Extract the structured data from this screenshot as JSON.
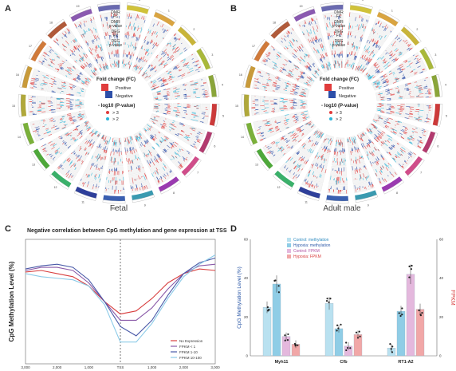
{
  "panels": {
    "A": {
      "letter": "A",
      "caption": "Fetal"
    },
    "B": {
      "letter": "B",
      "caption": "Adult male"
    },
    "C": {
      "letter": "C"
    },
    "D": {
      "letter": "D"
    }
  },
  "circos": {
    "track_labels": [
      [
        "DMR",
        "FC"
      ],
      [
        "DMR",
        "p-value"
      ],
      [
        "DEG",
        "FC"
      ],
      [
        "DEG",
        "p-value"
      ]
    ],
    "legend": {
      "fc_title": "Fold change (FC)",
      "positive": "Positive",
      "negative": "Negative",
      "p_title": "- log10 (P-value)",
      "p_gt3": "> 3",
      "p_gt2": "> 2"
    },
    "chromosomes": [
      "1",
      "2",
      "3",
      "4",
      "5",
      "6",
      "7",
      "8",
      "9",
      "10",
      "11",
      "12",
      "13",
      "14",
      "15",
      "16",
      "17",
      "18",
      "19",
      "20",
      "X"
    ],
    "colors": {
      "positive": "#e03c3c",
      "negative": "#2e4fa8",
      "p3": "#e03c3c",
      "p2": "#2bb5d8"
    }
  },
  "chart_data": [
    {
      "type": "line",
      "title": "Negative correlation between CpG methylation and gene expression at TSS",
      "ylabel": "CpG Methylation Level (%)",
      "x": [
        -3000,
        -2500,
        -2000,
        -1500,
        -1000,
        -500,
        0,
        500,
        1000,
        1500,
        2000,
        2500,
        3000
      ],
      "xtick_labels": [
        "3,000",
        "2,000",
        "1,000",
        "TSS",
        "1,000",
        "2,000",
        "3,000"
      ],
      "ylim": [
        0,
        80
      ],
      "series": [
        {
          "name": "No Expression",
          "color": "#d84040",
          "values": [
            59,
            60,
            58,
            56,
            50,
            40,
            32,
            34,
            42,
            52,
            58,
            61,
            60
          ]
        },
        {
          "name": "FPKM < 1",
          "color": "#8a5aa8",
          "values": [
            60,
            62,
            62,
            60,
            52,
            40,
            28,
            28,
            36,
            48,
            58,
            63,
            64
          ]
        },
        {
          "name": "FPKM 1-10",
          "color": "#4a5aa8",
          "values": [
            61,
            63,
            64,
            62,
            54,
            40,
            24,
            18,
            28,
            44,
            58,
            65,
            68
          ]
        },
        {
          "name": "FPKM 10-100",
          "color": "#8ccbe8",
          "values": [
            58,
            56,
            55,
            54,
            50,
            38,
            14,
            14,
            26,
            42,
            56,
            64,
            70
          ]
        }
      ]
    },
    {
      "type": "bar",
      "ylabel": "CpG Methylation Level (%)",
      "y2label": "FPKM",
      "categories": [
        "Myh11",
        "Cfb",
        "RT1-A2"
      ],
      "ylim": [
        0,
        60
      ],
      "y2lim": [
        0,
        60
      ],
      "yticks": [
        0,
        20,
        40,
        60
      ],
      "series": [
        {
          "name": "Control: methylation",
          "color": "#b9e1f0",
          "axis": "left",
          "values": [
            25,
            27,
            4
          ]
        },
        {
          "name": "Hypoxia: methylation",
          "color": "#8fcde6",
          "axis": "left",
          "values": [
            37,
            14,
            23
          ]
        },
        {
          "name": "Control: FPKM",
          "color": "#e4b8dd",
          "axis": "right",
          "values": [
            10,
            5,
            42
          ]
        },
        {
          "name": "Hypoxia: FPKM",
          "color": "#f1a7a7",
          "axis": "right",
          "values": [
            6,
            11,
            24
          ]
        }
      ]
    }
  ]
}
